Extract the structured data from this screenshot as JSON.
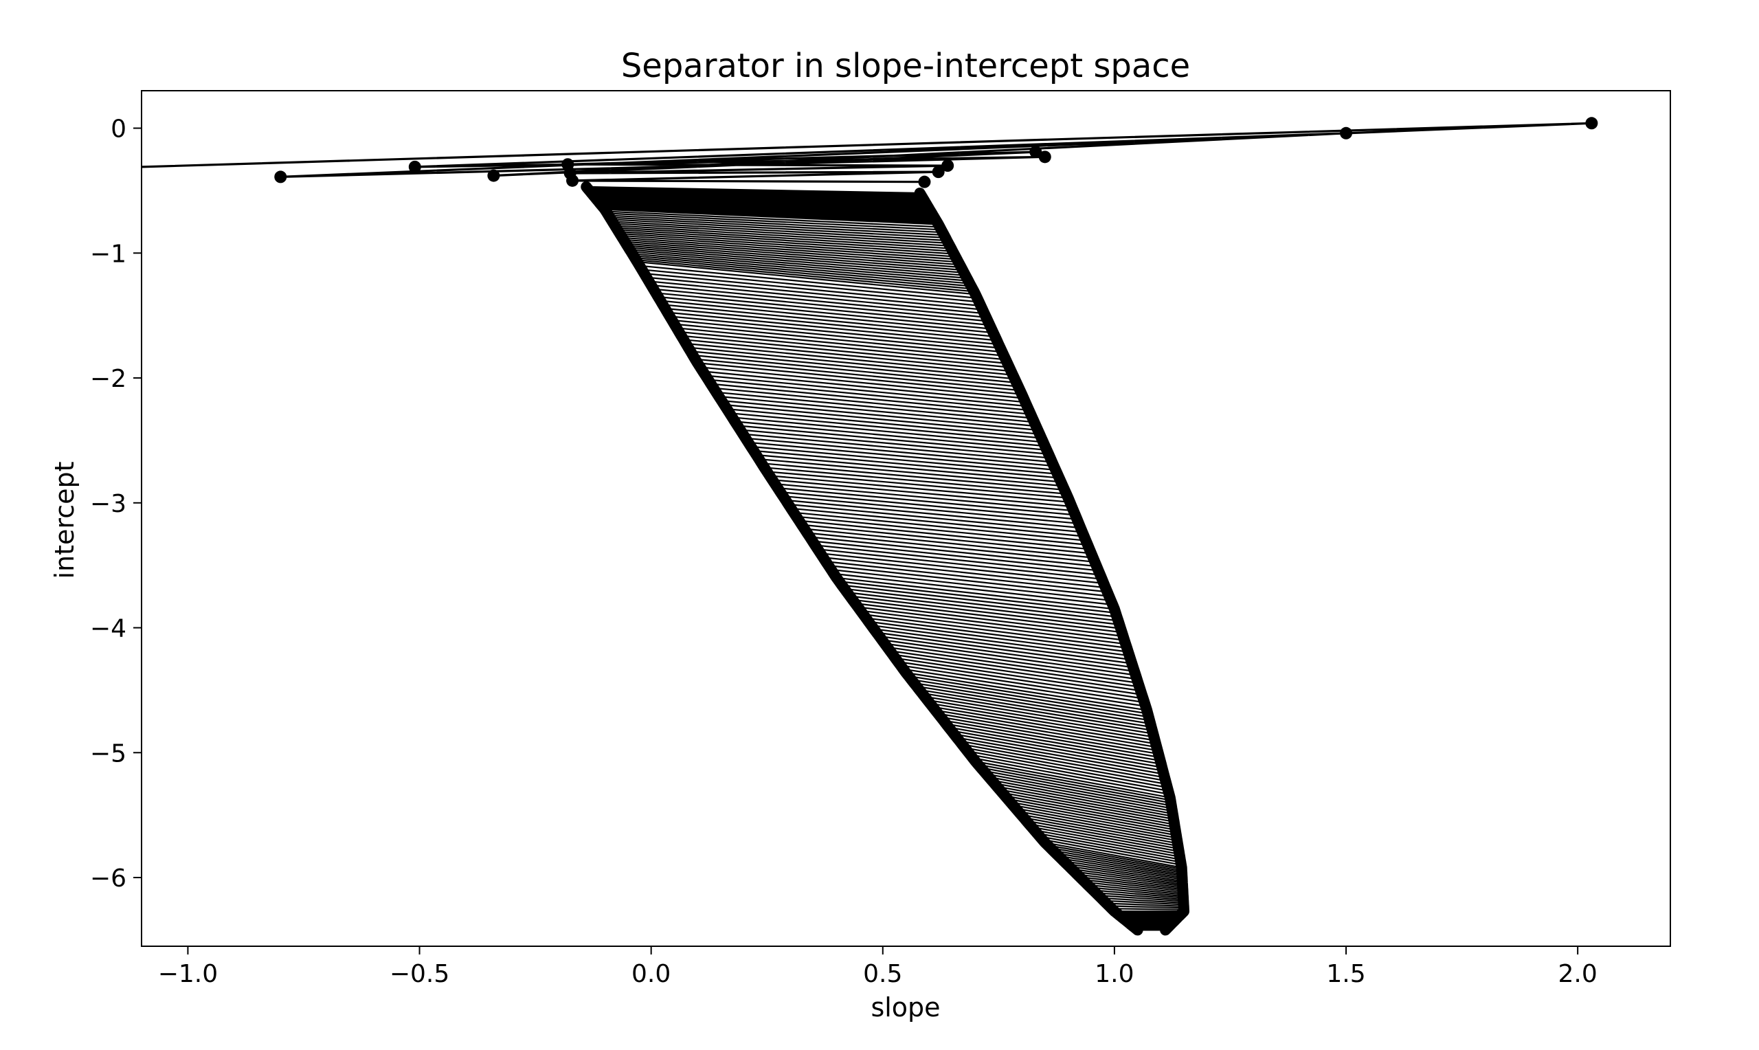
{
  "chart_data": {
    "type": "line",
    "title": "Separator in slope-intercept space",
    "xlabel": "slope",
    "ylabel": "intercept",
    "xlim": [
      -1.1,
      2.2
    ],
    "ylim": [
      -6.55,
      0.3
    ],
    "xticks": [
      -1.0,
      -0.5,
      0.0,
      0.5,
      1.0,
      1.5,
      2.0
    ],
    "xtick_labels": [
      "−1.0",
      "−0.5",
      "0.0",
      "0.5",
      "1.0",
      "1.5",
      "2.0"
    ],
    "yticks": [
      0,
      -1,
      -2,
      -3,
      -4,
      -5,
      -6
    ],
    "ytick_labels": [
      "0",
      "−1",
      "−2",
      "−3",
      "−4",
      "−5",
      "−6"
    ],
    "grid": false,
    "color": "#000000",
    "series": [
      {
        "x": [
          -1.1,
          2.03,
          -0.8,
          0.85,
          -0.51,
          1.5,
          -0.34,
          0.83,
          -0.18,
          0.64,
          -0.175,
          0.62,
          -0.17,
          0.59
        ],
        "y": [
          -0.31,
          0.04,
          -0.39,
          -0.23,
          -0.31,
          -0.04,
          -0.38,
          -0.19,
          -0.29,
          -0.3,
          -0.36,
          -0.35,
          -0.42,
          -0.43
        ]
      }
    ],
    "fan": {
      "left_edge": {
        "x": [
          -0.14,
          -0.1,
          -0.03,
          0.1,
          0.25,
          0.4,
          0.55,
          0.7,
          0.85,
          1.0,
          1.05
        ],
        "y": [
          -0.47,
          -0.65,
          -1.07,
          -1.88,
          -2.75,
          -3.6,
          -4.36,
          -5.07,
          -5.72,
          -6.27,
          -6.42
        ]
      },
      "right_edge": {
        "x": [
          0.58,
          0.62,
          0.7,
          0.8,
          0.9,
          1.0,
          1.07,
          1.12,
          1.145,
          1.15,
          1.11
        ],
        "y": [
          -0.52,
          -0.77,
          -1.33,
          -2.13,
          -2.96,
          -3.85,
          -4.66,
          -5.36,
          -5.92,
          -6.27,
          -6.42
        ]
      },
      "segments": 260
    }
  }
}
